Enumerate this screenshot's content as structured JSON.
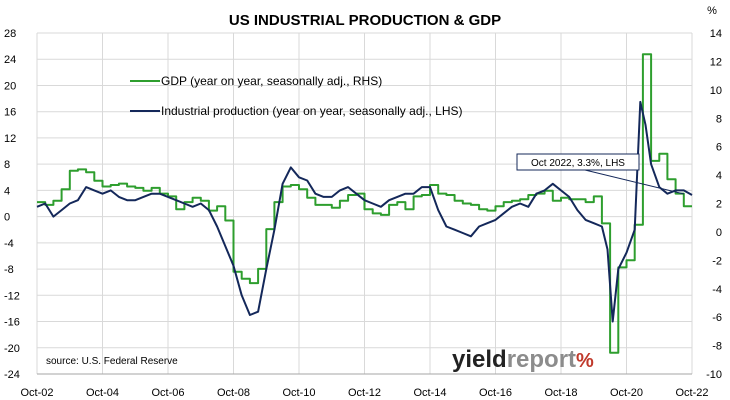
{
  "chart_data": {
    "type": "line",
    "title": "US INDUSTRIAL PRODUCTION & GDP",
    "right_unit": "%",
    "source": "source: U.S. Federal Reserve",
    "brand": {
      "part1": "yield",
      "part2": "report",
      "pct": "%"
    },
    "colors": {
      "gdp": "#2e9e2e",
      "ip": "#14285a",
      "grid": "#d9d9d9",
      "brand_dark": "#222222",
      "brand_mid": "#8c8c8c",
      "brand_red": "#c0392b",
      "brand_green": "#3aa53a"
    },
    "x_ticks": [
      "Oct-02",
      "Oct-04",
      "Oct-06",
      "Oct-08",
      "Oct-10",
      "Oct-12",
      "Oct-14",
      "Oct-16",
      "Oct-18",
      "Oct-20",
      "Oct-22"
    ],
    "x_range": [
      2002.75,
      2022.75
    ],
    "left_axis": {
      "min": -24,
      "max": 28,
      "step": 4,
      "ticks": [
        "-24",
        "-20",
        "-16",
        "-12",
        "-8",
        "-4",
        "0",
        "4",
        "8",
        "12",
        "16",
        "20",
        "24",
        "28"
      ]
    },
    "right_axis": {
      "min": -10,
      "max": 14,
      "step": 2,
      "ticks": [
        "-10",
        "-8",
        "-6",
        "-4",
        "-2",
        "0",
        "2",
        "4",
        "6",
        "8",
        "10",
        "12",
        "14"
      ]
    },
    "legend": [
      {
        "key": "gdp",
        "label": "GDP (year on year, seasonally adj., RHS)"
      },
      {
        "key": "ip",
        "label": "Industrial production (year on year, seasonally adj., LHS)"
      }
    ],
    "annotation": "Oct 2022, 3.3%, LHS",
    "series": [
      {
        "name": "GDP (year on year, seasonally adj., RHS)",
        "axis": "right",
        "step": true,
        "x": [
          2002.75,
          2003.0,
          2003.25,
          2003.5,
          2003.75,
          2004.0,
          2004.25,
          2004.5,
          2004.75,
          2005.0,
          2005.25,
          2005.5,
          2005.75,
          2006.0,
          2006.25,
          2006.5,
          2006.75,
          2007.0,
          2007.25,
          2007.5,
          2007.75,
          2008.0,
          2008.25,
          2008.5,
          2008.75,
          2009.0,
          2009.25,
          2009.5,
          2009.75,
          2010.0,
          2010.25,
          2010.5,
          2010.75,
          2011.0,
          2011.25,
          2011.5,
          2011.75,
          2012.0,
          2012.25,
          2012.5,
          2012.75,
          2013.0,
          2013.25,
          2013.5,
          2013.75,
          2014.0,
          2014.25,
          2014.5,
          2014.75,
          2015.0,
          2015.25,
          2015.5,
          2015.75,
          2016.0,
          2016.25,
          2016.5,
          2016.75,
          2017.0,
          2017.25,
          2017.5,
          2017.75,
          2018.0,
          2018.25,
          2018.5,
          2018.75,
          2019.0,
          2019.25,
          2019.5,
          2019.75,
          2020.0,
          2020.25,
          2020.5,
          2020.75,
          2021.0,
          2021.25,
          2021.5,
          2021.75,
          2022.0,
          2022.25,
          2022.5,
          2022.75
        ],
        "y": [
          2.1,
          1.9,
          2.2,
          3.0,
          4.3,
          4.4,
          4.2,
          3.6,
          3.2,
          3.3,
          3.4,
          3.2,
          3.1,
          2.9,
          3.1,
          2.7,
          2.5,
          1.6,
          2.1,
          2.4,
          2.2,
          1.5,
          1.8,
          0.8,
          -2.8,
          -3.3,
          -3.6,
          -2.6,
          0.2,
          2.1,
          3.2,
          3.3,
          3.0,
          2.4,
          1.9,
          1.9,
          1.7,
          2.2,
          2.6,
          2.7,
          1.6,
          1.3,
          1.2,
          1.9,
          2.1,
          1.6,
          2.5,
          2.6,
          3.3,
          2.7,
          2.6,
          2.2,
          2.0,
          1.9,
          1.6,
          1.5,
          1.8,
          2.1,
          2.2,
          2.3,
          2.6,
          2.7,
          2.9,
          2.2,
          2.4,
          2.3,
          2.3,
          2.1,
          2.5,
          0.6,
          -8.5,
          -2.5,
          -2.0,
          0.5,
          12.5,
          5.0,
          5.5,
          3.7,
          2.7,
          1.8,
          1.8
        ]
      },
      {
        "name": "Industrial production (year on year, seasonally adj., LHS)",
        "axis": "left",
        "step": false,
        "x": [
          2002.75,
          2003.0,
          2003.25,
          2003.5,
          2003.75,
          2004.0,
          2004.25,
          2004.5,
          2004.75,
          2005.0,
          2005.25,
          2005.5,
          2005.75,
          2006.0,
          2006.25,
          2006.5,
          2006.75,
          2007.0,
          2007.25,
          2007.5,
          2007.75,
          2008.0,
          2008.25,
          2008.5,
          2008.75,
          2009.0,
          2009.25,
          2009.5,
          2009.75,
          2010.0,
          2010.25,
          2010.5,
          2010.75,
          2011.0,
          2011.25,
          2011.5,
          2011.75,
          2012.0,
          2012.25,
          2012.5,
          2012.75,
          2013.0,
          2013.25,
          2013.5,
          2013.75,
          2014.0,
          2014.25,
          2014.5,
          2014.75,
          2015.0,
          2015.25,
          2015.5,
          2015.75,
          2016.0,
          2016.25,
          2016.5,
          2016.75,
          2017.0,
          2017.25,
          2017.5,
          2017.75,
          2018.0,
          2018.25,
          2018.5,
          2018.75,
          2019.0,
          2019.25,
          2019.5,
          2019.75,
          2020.0,
          2020.17,
          2020.33,
          2020.5,
          2020.75,
          2021.0,
          2021.17,
          2021.33,
          2021.5,
          2021.75,
          2022.0,
          2022.25,
          2022.5,
          2022.75
        ],
        "y": [
          1.5,
          2.0,
          0.0,
          1.0,
          2.0,
          2.5,
          4.5,
          4.0,
          3.5,
          4.0,
          3.0,
          2.5,
          2.5,
          3.0,
          3.5,
          3.5,
          3.0,
          2.5,
          2.0,
          1.5,
          2.0,
          1.0,
          -1.5,
          -4.5,
          -7.5,
          -12.0,
          -15.0,
          -14.5,
          -8.0,
          -2.0,
          5.0,
          7.5,
          6.0,
          5.5,
          3.5,
          3.0,
          3.0,
          4.0,
          4.5,
          3.5,
          2.5,
          2.0,
          1.5,
          2.5,
          3.0,
          3.5,
          3.5,
          4.5,
          4.5,
          1.0,
          -1.5,
          -2.0,
          -2.5,
          -3.0,
          -1.5,
          -1.0,
          -0.5,
          0.5,
          1.5,
          2.0,
          1.5,
          3.5,
          4.0,
          5.0,
          4.0,
          3.0,
          1.0,
          -0.5,
          -1.0,
          -1.5,
          -5.0,
          -16.0,
          -8.0,
          -5.5,
          -2.0,
          17.5,
          14.0,
          8.0,
          4.5,
          3.5,
          4.0,
          4.0,
          3.3
        ]
      }
    ]
  }
}
